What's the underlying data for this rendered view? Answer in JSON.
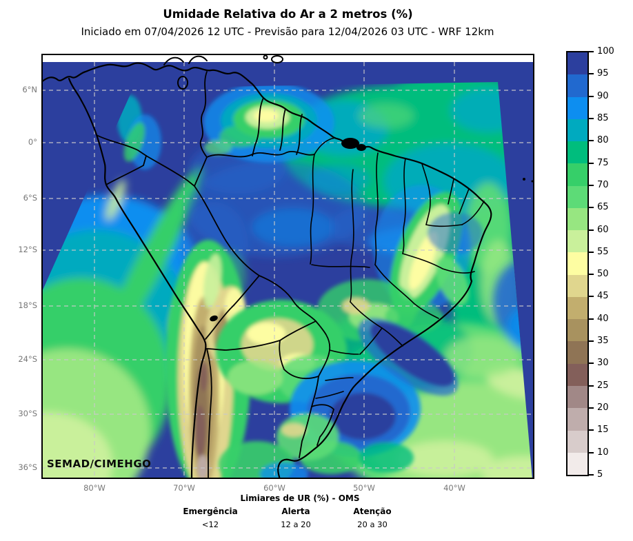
{
  "header": {
    "title": "Umidade Relativa do Ar a 2 metros (%)",
    "subtitle": "Iniciado em 07/04/2026 12 UTC - Previsão para 12/04/2026 03 UTC - WRF 12km"
  },
  "map": {
    "watermark": "SEMAD/CIMEHGO",
    "lat_ticks": [
      "6°N",
      "0°",
      "6°S",
      "12°S",
      "18°S",
      "24°S",
      "30°S",
      "36°S"
    ],
    "lon_ticks": [
      "80°W",
      "70°W",
      "60°W",
      "50°W",
      "40°W"
    ]
  },
  "colorbar": {
    "unit": "%",
    "tick_labels": [
      "100",
      "95",
      "90",
      "85",
      "80",
      "75",
      "70",
      "65",
      "60",
      "55",
      "50",
      "45",
      "40",
      "35",
      "30",
      "25",
      "20",
      "15",
      "10",
      "5"
    ],
    "segments": [
      {
        "range": "95-100",
        "color": "#2c3f9e"
      },
      {
        "range": "90-95",
        "color": "#2169cf"
      },
      {
        "range": "85-90",
        "color": "#0d8ef0"
      },
      {
        "range": "80-85",
        "color": "#00aabf"
      },
      {
        "range": "75-80",
        "color": "#00bd7d"
      },
      {
        "range": "70-75",
        "color": "#36cf69"
      },
      {
        "range": "65-70",
        "color": "#5ddb77"
      },
      {
        "range": "60-65",
        "color": "#97e681"
      },
      {
        "range": "55-60",
        "color": "#c9f09b"
      },
      {
        "range": "50-55",
        "color": "#fdfda2"
      },
      {
        "range": "45-50",
        "color": "#e0d68e"
      },
      {
        "range": "40-45",
        "color": "#c2ae6e"
      },
      {
        "range": "35-40",
        "color": "#a8925f"
      },
      {
        "range": "30-35",
        "color": "#8f7455"
      },
      {
        "range": "25-30",
        "color": "#835f5a"
      },
      {
        "range": "20-25",
        "color": "#a18887"
      },
      {
        "range": "15-20",
        "color": "#bfadac"
      },
      {
        "range": "10-15",
        "color": "#d8cccb"
      },
      {
        "range": "5-10",
        "color": "#f2ebea"
      }
    ]
  },
  "thresholds": {
    "title": "Limiares de UR (%) - OMS",
    "items": [
      {
        "label": "Emergência",
        "value": "<12"
      },
      {
        "label": "Alerta",
        "value": "12 a 20"
      },
      {
        "label": "Atenção",
        "value": "20 a 30"
      }
    ]
  }
}
